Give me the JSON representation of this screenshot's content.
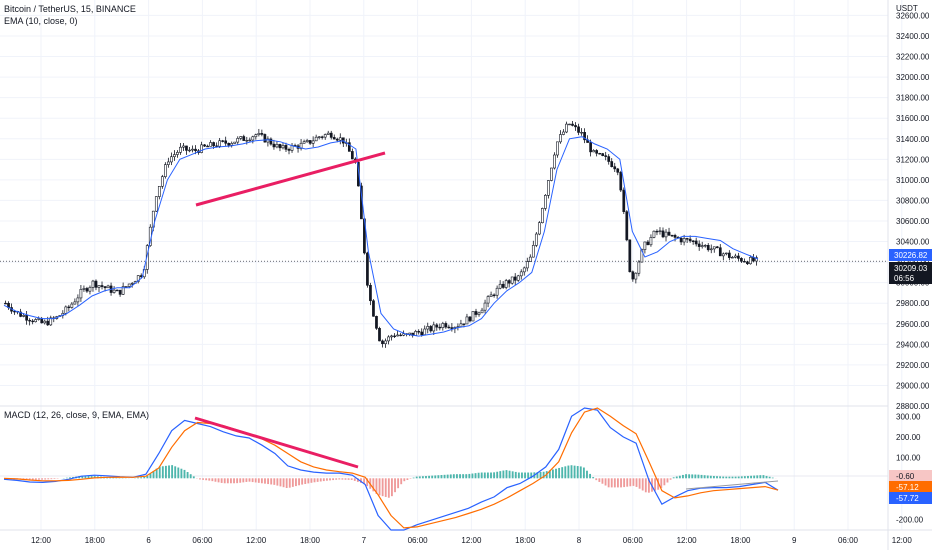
{
  "header": {
    "symbol": "Bitcoin / TetherUS, 15, BINANCE",
    "indicator": "EMA (10, close, 0)",
    "currency": "USDT"
  },
  "macd_header": "MACD (12, 26, close, 9, EMA, EMA)",
  "badges": {
    "ema_value": "30226.82",
    "last_price": "30209.03",
    "countdown": "06:56",
    "macd_hist": "-0.60",
    "macd_signal": "-57.12",
    "macd_line": "-57.72"
  },
  "colors": {
    "up": "#26a69a",
    "down": "#ef5350",
    "ema": "#2962ff",
    "macd_line": "#2962ff",
    "signal_line": "#ff6d00",
    "trendline": "#e91e63",
    "candle": "#131722"
  },
  "chart_data": [
    {
      "type": "candlestick",
      "title": "Bitcoin / TetherUS, 15, BINANCE",
      "ylim": [
        28800,
        32750
      ],
      "y_ticks": [
        "32600.00",
        "32400.00",
        "32200.00",
        "32000.00",
        "31800.00",
        "31600.00",
        "31400.00",
        "31200.00",
        "31000.00",
        "30800.00",
        "30600.00",
        "30400.00",
        "30200.00",
        "30000.00",
        "29800.00",
        "29600.00",
        "29400.00",
        "29200.00",
        "29000.00",
        "28800.00"
      ],
      "x_ticks": [
        "12:00",
        "18:00",
        "6",
        "06:00",
        "12:00",
        "18:00",
        "7",
        "06:00",
        "12:00",
        "18:00",
        "8",
        "06:00",
        "12:00",
        "18:00",
        "9",
        "06:00",
        "12:00"
      ],
      "series": [
        {
          "name": "EMA (10, close, 0)",
          "values": [
            29780,
            29720,
            29680,
            29650,
            29650,
            29700,
            29780,
            29870,
            29920,
            29950,
            29950,
            30050,
            30600,
            31000,
            31200,
            31250,
            31300,
            31320,
            31330,
            31350,
            31380,
            31390,
            31370,
            31330,
            31300,
            31320,
            31360,
            31380,
            31300,
            30300,
            29700,
            29550,
            29500,
            29480,
            29500,
            29520,
            29560,
            29580,
            29650,
            29800,
            29920,
            30000,
            30100,
            30500,
            31100,
            31400,
            31420,
            31350,
            31300,
            31200,
            30500,
            30250,
            30300,
            30400,
            30450,
            30450,
            30430,
            30410,
            30330,
            30280,
            30230
          ]
        },
        {
          "name": "Price",
          "values": [
            29800,
            29700,
            29650,
            29600,
            29650,
            29750,
            29900,
            30000,
            29950,
            29900,
            30000,
            30100,
            30850,
            31200,
            31300,
            31280,
            31320,
            31350,
            31370,
            31400,
            31440,
            31380,
            31300,
            31320,
            31350,
            31420,
            31450,
            31380,
            31150,
            29900,
            29400,
            29500,
            29480,
            29520,
            29550,
            29600,
            29580,
            29650,
            29750,
            29900,
            30000,
            30050,
            30250,
            30800,
            31350,
            31550,
            31450,
            31250,
            31200,
            31100,
            30000,
            30350,
            30500,
            30450,
            30420,
            30400,
            30350,
            30300,
            30250,
            30220,
            30209
          ]
        }
      ]
    },
    {
      "type": "line",
      "title": "MACD (12, 26, close, 9, EMA, EMA)",
      "ylim": [
        -250,
        340
      ],
      "y_ticks": [
        "300.00",
        "200.00",
        "100.00",
        "0.00",
        "-100.00",
        "-200.00"
      ],
      "series": [
        {
          "name": "MACD",
          "values": [
            -5,
            -10,
            -18,
            -20,
            -15,
            -5,
            10,
            15,
            12,
            8,
            5,
            20,
            120,
            230,
            280,
            265,
            250,
            225,
            205,
            195,
            160,
            120,
            60,
            40,
            30,
            25,
            25,
            15,
            -30,
            -180,
            -300,
            -260,
            -225,
            -205,
            -185,
            -165,
            -145,
            -115,
            -90,
            -45,
            -25,
            10,
            55,
            140,
            300,
            390,
            330,
            245,
            200,
            170,
            -10,
            -125,
            -90,
            -60,
            -48,
            -45,
            -45,
            -40,
            -30,
            -20,
            -57.72
          ]
        },
        {
          "name": "Signal",
          "values": [
            0,
            -3,
            -8,
            -12,
            -12,
            -10,
            -5,
            2,
            5,
            6,
            5,
            10,
            50,
            150,
            230,
            270,
            265,
            255,
            235,
            215,
            190,
            160,
            120,
            80,
            55,
            40,
            32,
            25,
            5,
            -80,
            -180,
            -240,
            -235,
            -220,
            -205,
            -190,
            -170,
            -150,
            -125,
            -95,
            -60,
            -25,
            15,
            80,
            220,
            320,
            340,
            300,
            255,
            215,
            80,
            -60,
            -95,
            -85,
            -70,
            -60,
            -55,
            -50,
            -45,
            -40,
            -57.12
          ]
        }
      ]
    }
  ]
}
